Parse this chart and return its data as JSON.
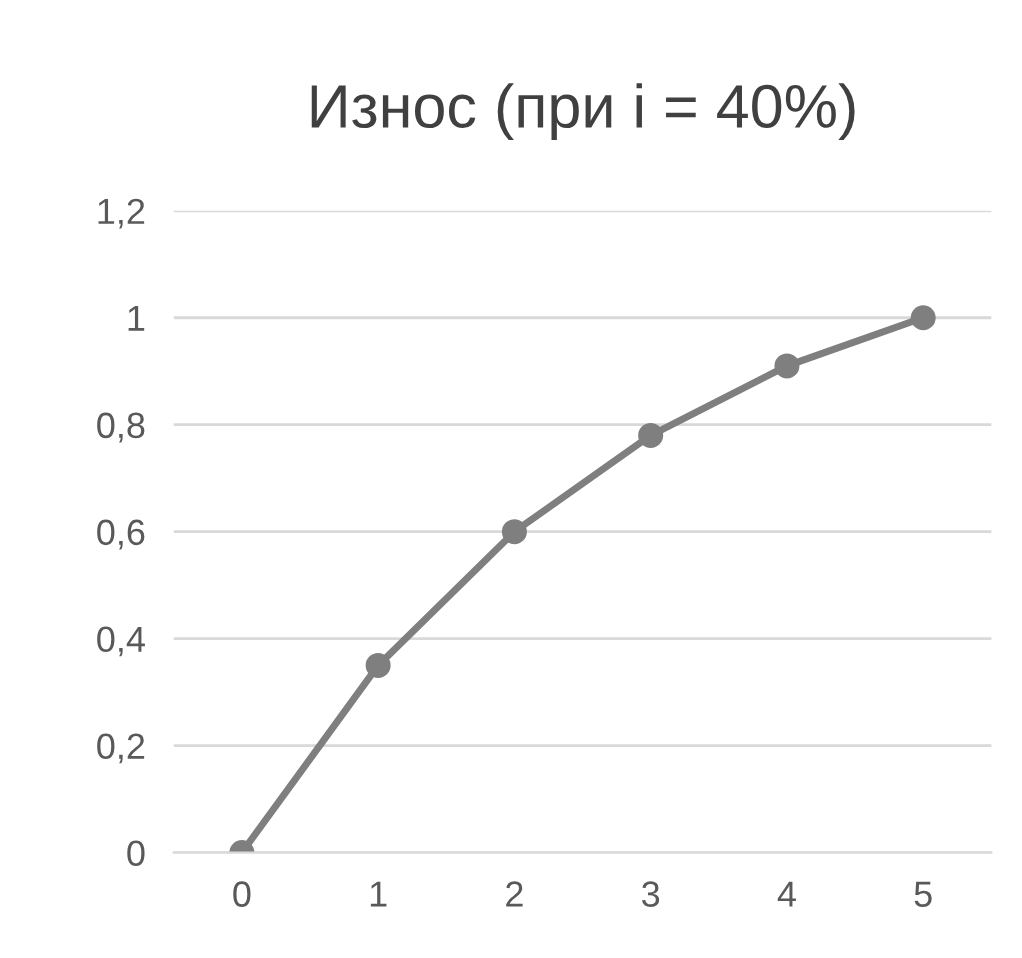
{
  "chart_data": {
    "type": "line",
    "title": "Износ (при i = 40%)",
    "categories": [
      "0",
      "1",
      "2",
      "3",
      "4",
      "5"
    ],
    "series": [
      {
        "color": "#7f7f7f",
        "values": [
          0,
          0.35,
          0.6,
          0.78,
          0.91,
          1
        ]
      }
    ],
    "ylim": [
      0,
      1.2
    ],
    "yticks": [
      0,
      {
        "value": 0.2,
        "label": "0,2"
      },
      {
        "value": 0.4,
        "label": "0,4"
      },
      {
        "value": 0.6,
        "label": "0,6"
      },
      {
        "value": 0.8,
        "label": "0,8"
      },
      1,
      {
        "value": 1.2,
        "label": "1,2"
      }
    ],
    "grid": "y",
    "marker": "circle",
    "line_style": "solid",
    "legend": false
  }
}
